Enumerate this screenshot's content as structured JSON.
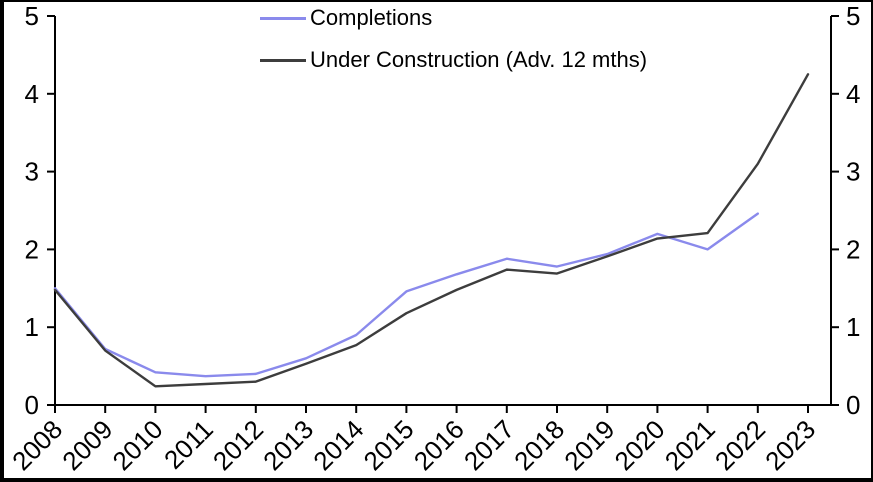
{
  "figure": {
    "background": "#ffffff",
    "frame_color": "#000000",
    "text_color": "#000000"
  },
  "legend": {
    "position": "top-center",
    "items": [
      {
        "label": "Completions",
        "color": "#8a8aec"
      },
      {
        "label": "Under Construction (Adv. 12 mths)",
        "color": "#3d3d3d"
      }
    ]
  },
  "chart_data": {
    "type": "line",
    "title": "",
    "xlabel": "",
    "ylabel": "",
    "x": [
      2008,
      2009,
      2010,
      2011,
      2012,
      2013,
      2014,
      2015,
      2016,
      2017,
      2018,
      2019,
      2020,
      2021,
      2022,
      2023
    ],
    "series": [
      {
        "name": "Completions",
        "color": "#8a8aec",
        "values": [
          1.5,
          0.72,
          0.42,
          0.37,
          0.4,
          0.6,
          0.9,
          1.46,
          1.68,
          1.88,
          1.78,
          1.94,
          2.2,
          2.0,
          2.46,
          null
        ]
      },
      {
        "name": "Under Construction (Adv. 12 mths)",
        "color": "#3d3d3d",
        "values": [
          1.48,
          0.7,
          0.24,
          0.27,
          0.3,
          0.53,
          0.77,
          1.18,
          1.48,
          1.74,
          1.69,
          1.91,
          2.14,
          2.21,
          3.1,
          4.25
        ]
      }
    ],
    "ylim": [
      0,
      5
    ],
    "left_axis_ticks": [
      0,
      1,
      2,
      3,
      4,
      5
    ],
    "right_axis_ticks": [
      0,
      1,
      2,
      3,
      4,
      5
    ],
    "x_tick_labels": [
      "2008",
      "2009",
      "2010",
      "2011",
      "2012",
      "2013",
      "2014",
      "2015",
      "2016",
      "2017",
      "2018",
      "2019",
      "2020",
      "2021",
      "2022",
      "2023"
    ],
    "grid": false,
    "x_label_rotation_deg": -45,
    "legend_position": "top-center"
  }
}
